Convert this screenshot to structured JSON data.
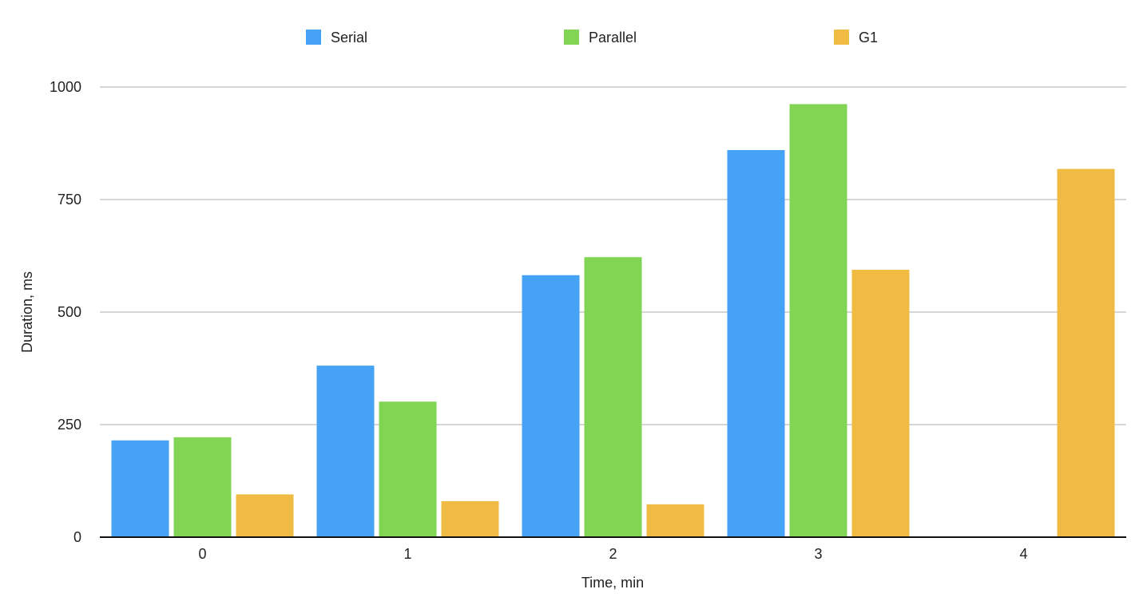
{
  "chart_data": {
    "type": "bar",
    "title": "",
    "xlabel": "Time, min",
    "ylabel": "Duration, ms",
    "categories": [
      "0",
      "1",
      "2",
      "3",
      "4"
    ],
    "ylim": [
      0,
      1000
    ],
    "yticks": [
      0,
      250,
      500,
      750,
      1000
    ],
    "grid": true,
    "legend_position": "top",
    "series": [
      {
        "name": "Serial",
        "color": "#45A2F5",
        "values": [
          215,
          381,
          582,
          860,
          null
        ]
      },
      {
        "name": "Parallel",
        "color": "#82D454",
        "values": [
          222,
          301,
          622,
          962,
          null
        ]
      },
      {
        "name": "G1",
        "color": "#EFBB42",
        "values": [
          95,
          80,
          73,
          594,
          818
        ]
      }
    ]
  }
}
